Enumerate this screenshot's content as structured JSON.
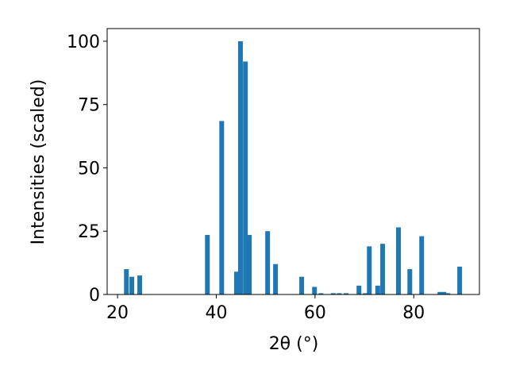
{
  "chart_data": {
    "type": "bar",
    "x_label": "2θ (°)",
    "y_label": "Intensities (scaled)",
    "x": [
      21.8,
      22.9,
      24.5,
      38.2,
      41.1,
      44.1,
      44.9,
      45.9,
      46.7,
      50.4,
      52.0,
      57.3,
      59.9,
      61.2,
      63.7,
      64.9,
      66.3,
      68.9,
      70.2,
      71.0,
      72.7,
      73.7,
      76.9,
      79.2,
      81.6,
      85.3,
      86.1,
      86.9,
      89.3
    ],
    "values": [
      10,
      7,
      7.5,
      23.5,
      68.5,
      9,
      100,
      92,
      23.5,
      25,
      12,
      7,
      3,
      0.5,
      0.5,
      0.5,
      0.5,
      3.5,
      0.5,
      19,
      3.5,
      20,
      26.5,
      10,
      23,
      1,
      1,
      0.5,
      11
    ],
    "color": "#1f77b4",
    "xlim": [
      17.9,
      93.3
    ],
    "xticks": [
      20,
      40,
      60,
      80
    ],
    "ylim": [
      0,
      105
    ],
    "yticks": [
      0,
      25,
      50,
      75,
      100
    ]
  }
}
